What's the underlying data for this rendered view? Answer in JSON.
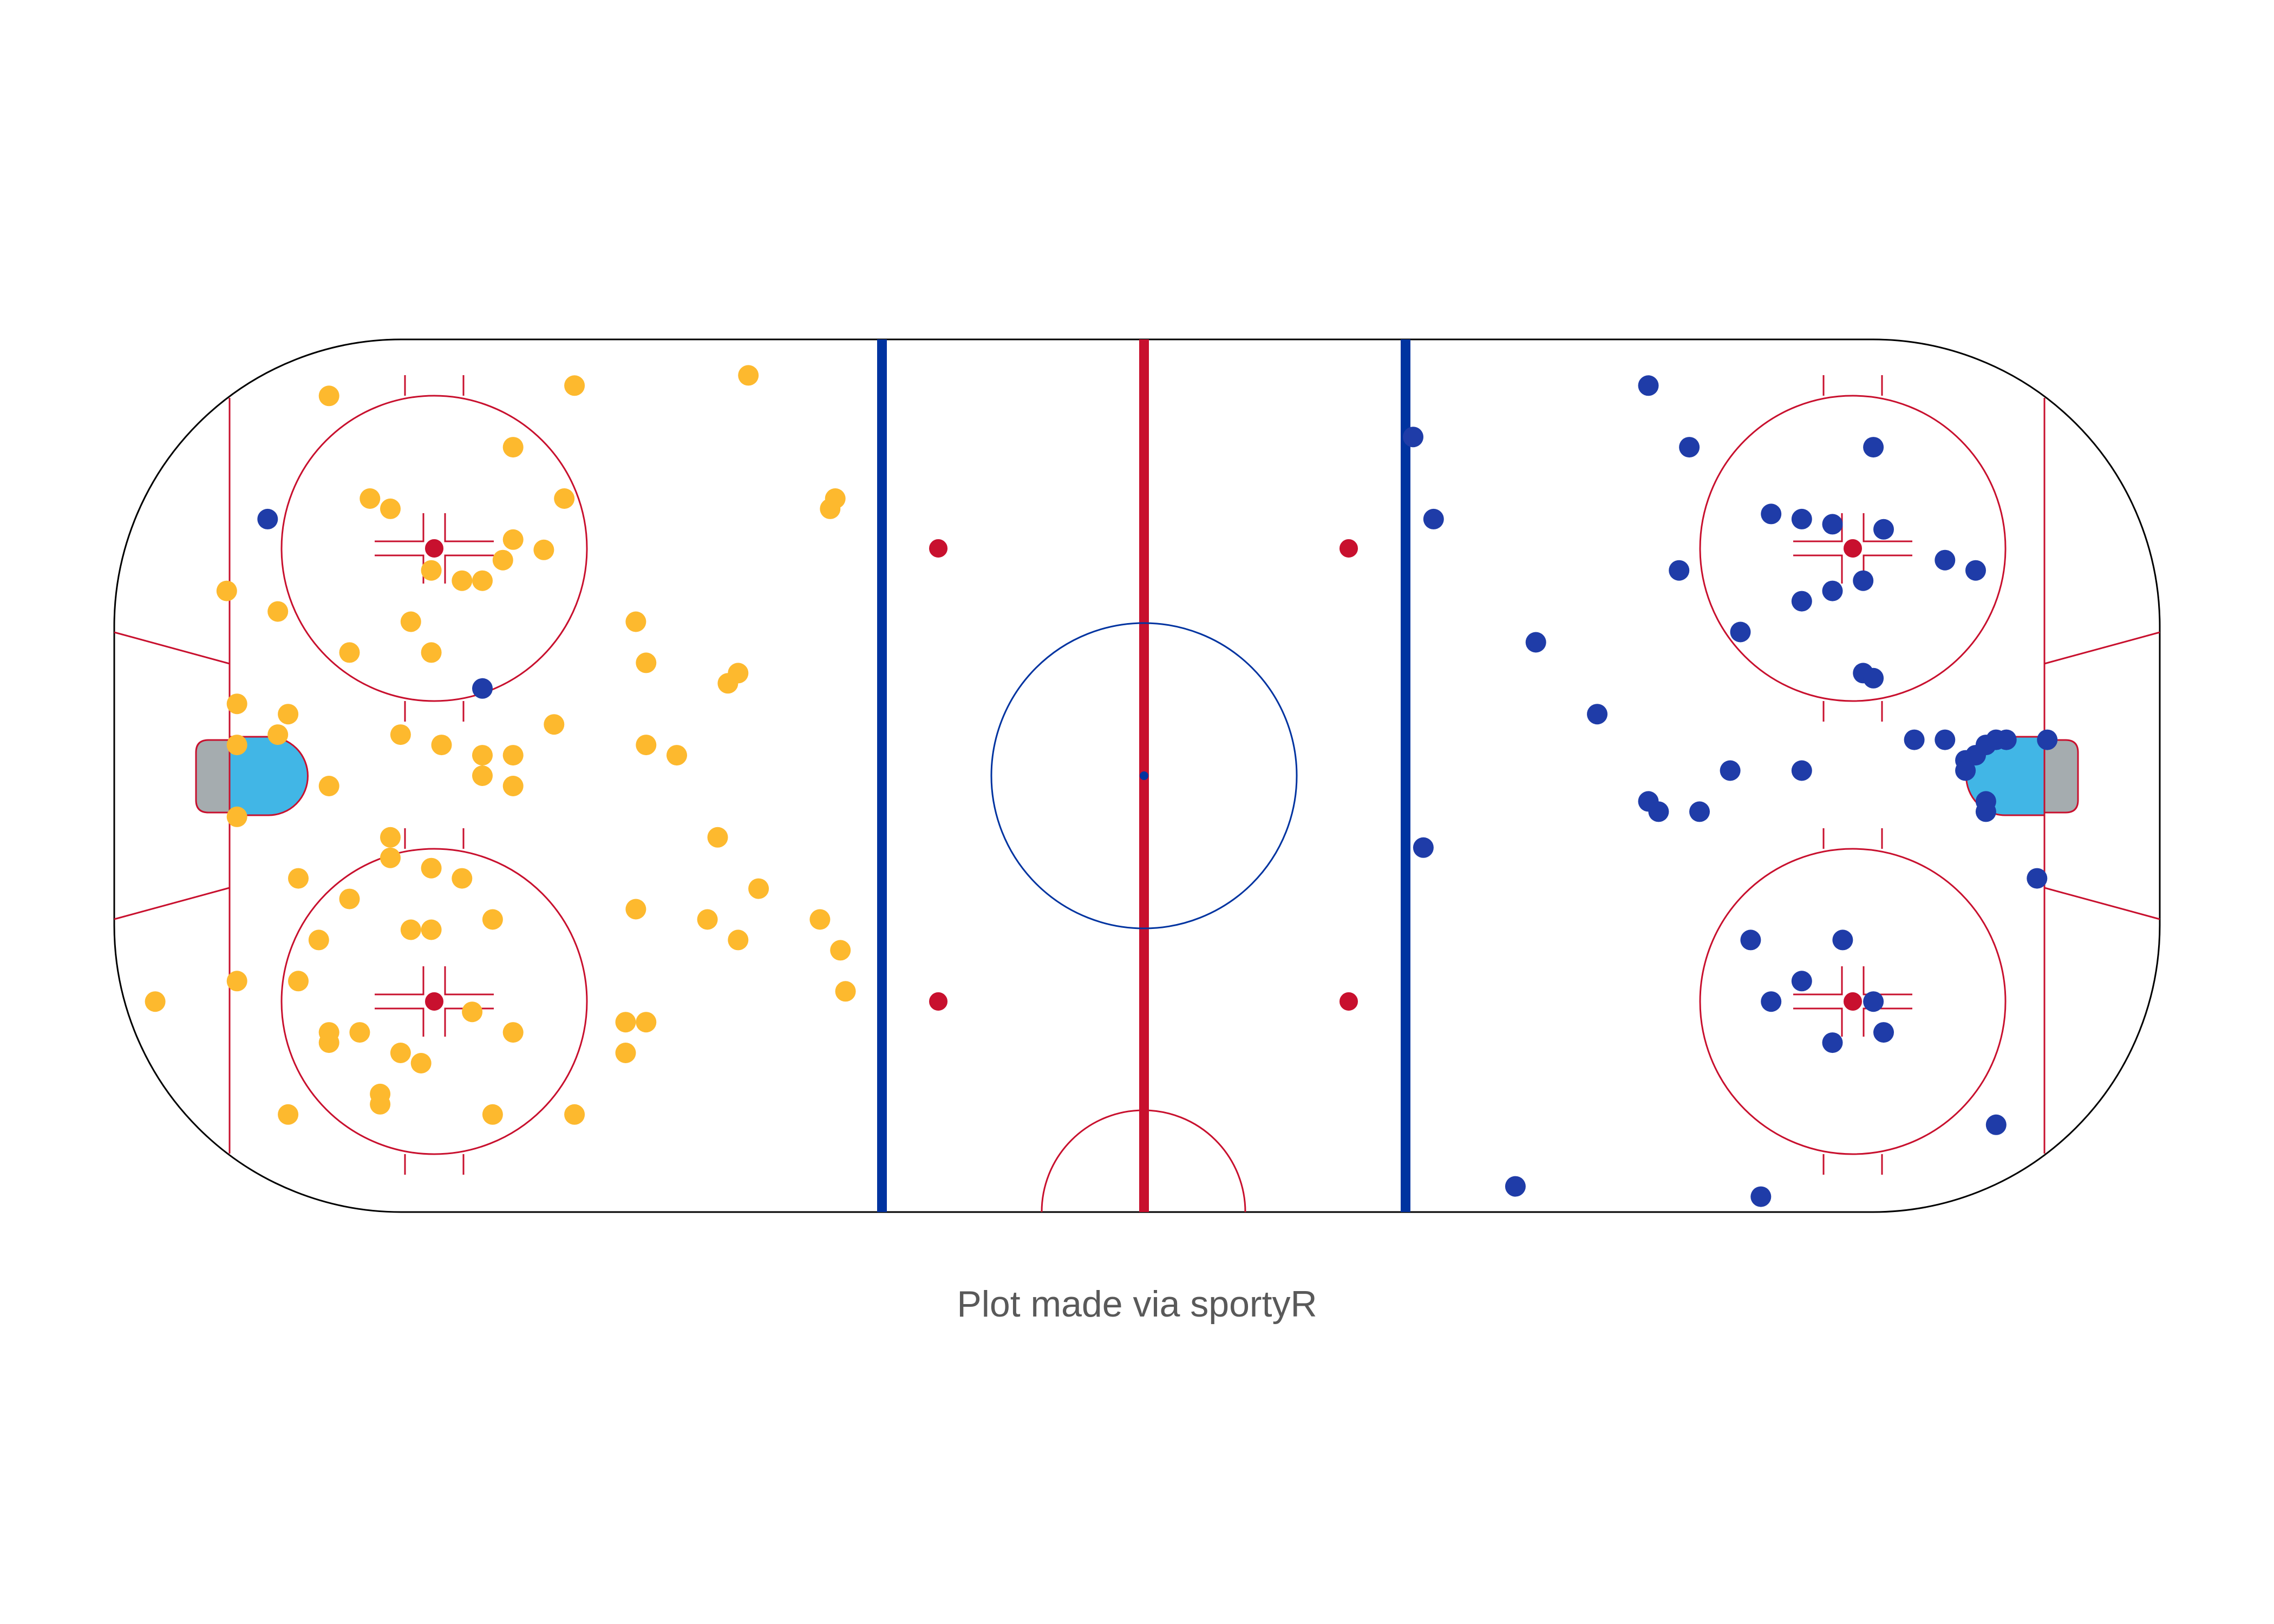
{
  "caption": "Plot made via sportyR",
  "chart_data": {
    "type": "scatter",
    "title": "",
    "xlabel": "",
    "ylabel": "",
    "xlim": [
      -100,
      100
    ],
    "ylim": [
      -42.5,
      42.5
    ],
    "grid": false,
    "legend": "none",
    "surface": "hockey rink (sportyR)",
    "colors": {
      "boards": "#000000",
      "red_line": "#c8102e",
      "blue_line": "#0033a0",
      "center_circle": "#0033a0",
      "crease": "#41b6e6",
      "goal_net": "#a5acaf",
      "series_yellow": "#fdb92e",
      "series_blue": "#1f3ca8"
    },
    "series": [
      {
        "color": "#fdb92e",
        "points": [
          [
            -79,
            37
          ],
          [
            -55,
            38
          ],
          [
            -38,
            39
          ],
          [
            -61,
            32
          ],
          [
            -56,
            27
          ],
          [
            -73,
            26
          ],
          [
            -75,
            27
          ],
          [
            -29.5,
            27
          ],
          [
            -30,
            26
          ],
          [
            -61,
            23
          ],
          [
            -58,
            22
          ],
          [
            -62,
            21
          ],
          [
            -64,
            19
          ],
          [
            -66,
            19
          ],
          [
            -69,
            20
          ],
          [
            -89,
            18
          ],
          [
            -84,
            16
          ],
          [
            -71,
            15
          ],
          [
            -69,
            12
          ],
          [
            -77,
            12
          ],
          [
            -49,
            15
          ],
          [
            -48,
            11
          ],
          [
            -88,
            7
          ],
          [
            -83,
            6
          ],
          [
            -84,
            4
          ],
          [
            -88,
            3
          ],
          [
            -72,
            4
          ],
          [
            -68,
            3
          ],
          [
            -64,
            2
          ],
          [
            -57,
            5
          ],
          [
            -61,
            2
          ],
          [
            -48,
            3
          ],
          [
            -45,
            2
          ],
          [
            -39,
            10
          ],
          [
            -40,
            9
          ],
          [
            -64,
            0
          ],
          [
            -79,
            -1
          ],
          [
            -61,
            -1
          ],
          [
            -88,
            -4
          ],
          [
            -73,
            -6
          ],
          [
            -73,
            -8
          ],
          [
            -82,
            -10
          ],
          [
            -77,
            -12
          ],
          [
            -69,
            -9
          ],
          [
            -66,
            -10
          ],
          [
            -63,
            -14
          ],
          [
            -71,
            -15
          ],
          [
            -69,
            -15
          ],
          [
            -42,
            -14
          ],
          [
            -41,
            -6
          ],
          [
            -37,
            -11
          ],
          [
            -31,
            -14
          ],
          [
            -29,
            -17
          ],
          [
            -28.5,
            -21
          ],
          [
            -39,
            -16
          ],
          [
            -49,
            -13
          ],
          [
            -80,
            -16
          ],
          [
            -88,
            -20
          ],
          [
            -82,
            -20
          ],
          [
            -79,
            -25
          ],
          [
            -61,
            -25
          ],
          [
            -48,
            -24
          ],
          [
            -50,
            -24
          ],
          [
            -65,
            -23
          ],
          [
            -79,
            -26
          ],
          [
            -76,
            -25
          ],
          [
            -72,
            -27
          ],
          [
            -70,
            -28
          ],
          [
            -50,
            -27
          ],
          [
            -74,
            -31
          ],
          [
            -83,
            -33
          ],
          [
            -74,
            -32
          ],
          [
            -63,
            -33
          ],
          [
            -55,
            -33
          ],
          [
            -96,
            -22
          ]
        ]
      },
      {
        "color": "#1f3ca8",
        "points": [
          [
            -85,
            25
          ],
          [
            -64,
            8.5
          ],
          [
            50,
            38
          ],
          [
            27,
            33
          ],
          [
            29,
            25
          ],
          [
            39,
            13
          ],
          [
            45,
            6
          ],
          [
            54,
            32
          ],
          [
            53,
            20
          ],
          [
            59,
            14
          ],
          [
            65,
            25
          ],
          [
            68,
            24.5
          ],
          [
            72,
            32
          ],
          [
            73,
            24
          ],
          [
            62,
            25.5
          ],
          [
            71,
            19
          ],
          [
            65,
            17
          ],
          [
            68,
            18
          ],
          [
            71,
            10
          ],
          [
            72,
            9.5
          ],
          [
            79,
            21
          ],
          [
            82,
            20
          ],
          [
            76,
            3.5
          ],
          [
            79,
            3.5
          ],
          [
            81,
            1.5
          ],
          [
            82,
            2
          ],
          [
            83,
            3
          ],
          [
            84,
            3.5
          ],
          [
            85,
            3.5
          ],
          [
            89,
            3.5
          ],
          [
            81,
            0.5
          ],
          [
            65,
            0.5
          ],
          [
            58,
            0.5
          ],
          [
            50,
            -2.5
          ],
          [
            51,
            -3.5
          ],
          [
            55,
            -3.5
          ],
          [
            83,
            -2.5
          ],
          [
            83,
            -3.5
          ],
          [
            28,
            -7
          ],
          [
            88,
            -10
          ],
          [
            60,
            -16
          ],
          [
            69,
            -16
          ],
          [
            65,
            -20
          ],
          [
            62,
            -22
          ],
          [
            72,
            -22
          ],
          [
            68,
            -26
          ],
          [
            73,
            -25
          ],
          [
            84,
            -34
          ],
          [
            37,
            -40
          ],
          [
            61,
            -41
          ]
        ]
      }
    ]
  }
}
